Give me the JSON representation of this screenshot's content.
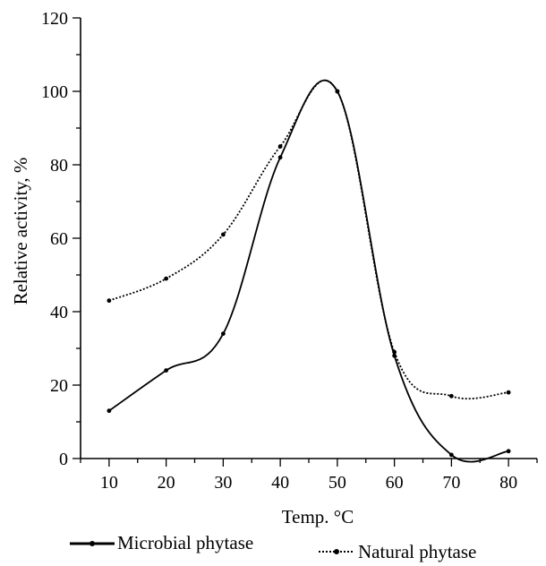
{
  "chart_data": {
    "type": "line",
    "title": "",
    "xlabel": "Temp. °C",
    "ylabel": "Relative activity, %",
    "xlim": [
      5,
      85
    ],
    "ylim": [
      0,
      120
    ],
    "x_ticks": [
      10,
      20,
      30,
      40,
      50,
      60,
      70,
      80
    ],
    "y_ticks": [
      0,
      20,
      40,
      60,
      80,
      100,
      120
    ],
    "grid": false,
    "legend_position": "bottom",
    "series": [
      {
        "name": "Microbial phytase",
        "style": "solid",
        "color": "#000000",
        "x": [
          10,
          20,
          30,
          40,
          50,
          60,
          70,
          80
        ],
        "y": [
          13,
          24,
          34,
          82,
          100,
          28,
          1,
          2
        ]
      },
      {
        "name": "Natural phytase",
        "style": "dotted",
        "color": "#000000",
        "x": [
          10,
          20,
          30,
          40,
          50,
          60,
          70,
          80
        ],
        "y": [
          43,
          49,
          61,
          85,
          100,
          29,
          17,
          18
        ]
      }
    ]
  }
}
